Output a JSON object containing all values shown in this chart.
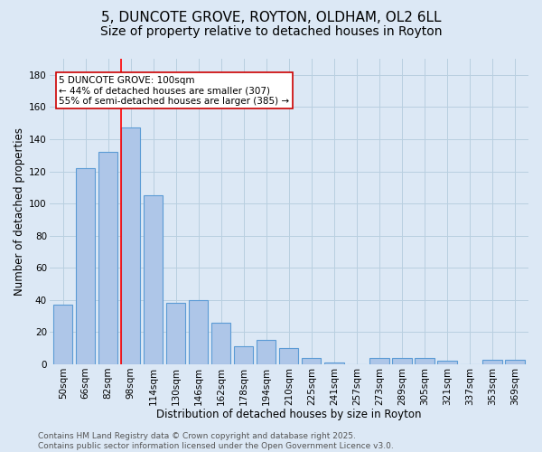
{
  "title_line1": "5, DUNCOTE GROVE, ROYTON, OLDHAM, OL2 6LL",
  "title_line2": "Size of property relative to detached houses in Royton",
  "xlabel": "Distribution of detached houses by size in Royton",
  "ylabel": "Number of detached properties",
  "bar_labels": [
    "50sqm",
    "66sqm",
    "82sqm",
    "98sqm",
    "114sqm",
    "130sqm",
    "146sqm",
    "162sqm",
    "178sqm",
    "194sqm",
    "210sqm",
    "225sqm",
    "241sqm",
    "257sqm",
    "273sqm",
    "289sqm",
    "305sqm",
    "321sqm",
    "337sqm",
    "353sqm",
    "369sqm"
  ],
  "bar_values": [
    37,
    122,
    132,
    147,
    105,
    38,
    40,
    26,
    11,
    15,
    10,
    4,
    1,
    0,
    4,
    4,
    4,
    2,
    0,
    3,
    3
  ],
  "bar_color": "#aec6e8",
  "bar_edge_color": "#5b9bd5",
  "background_color": "#dce8f5",
  "grid_color": "#b8cfe0",
  "annotation_title": "5 DUNCOTE GROVE: 100sqm",
  "annotation_line2": "← 44% of detached houses are smaller (307)",
  "annotation_line3": "55% of semi-detached houses are larger (385) →",
  "annotation_box_color": "#ffffff",
  "annotation_edge_color": "#cc0000",
  "ylim": [
    0,
    190
  ],
  "yticks": [
    0,
    20,
    40,
    60,
    80,
    100,
    120,
    140,
    160,
    180
  ],
  "footer_line1": "Contains HM Land Registry data © Crown copyright and database right 2025.",
  "footer_line2": "Contains public sector information licensed under the Open Government Licence v3.0.",
  "title_fontsize": 11,
  "subtitle_fontsize": 10,
  "axis_label_fontsize": 8.5,
  "tick_fontsize": 7.5,
  "annotation_fontsize": 7.5,
  "footer_fontsize": 6.5
}
